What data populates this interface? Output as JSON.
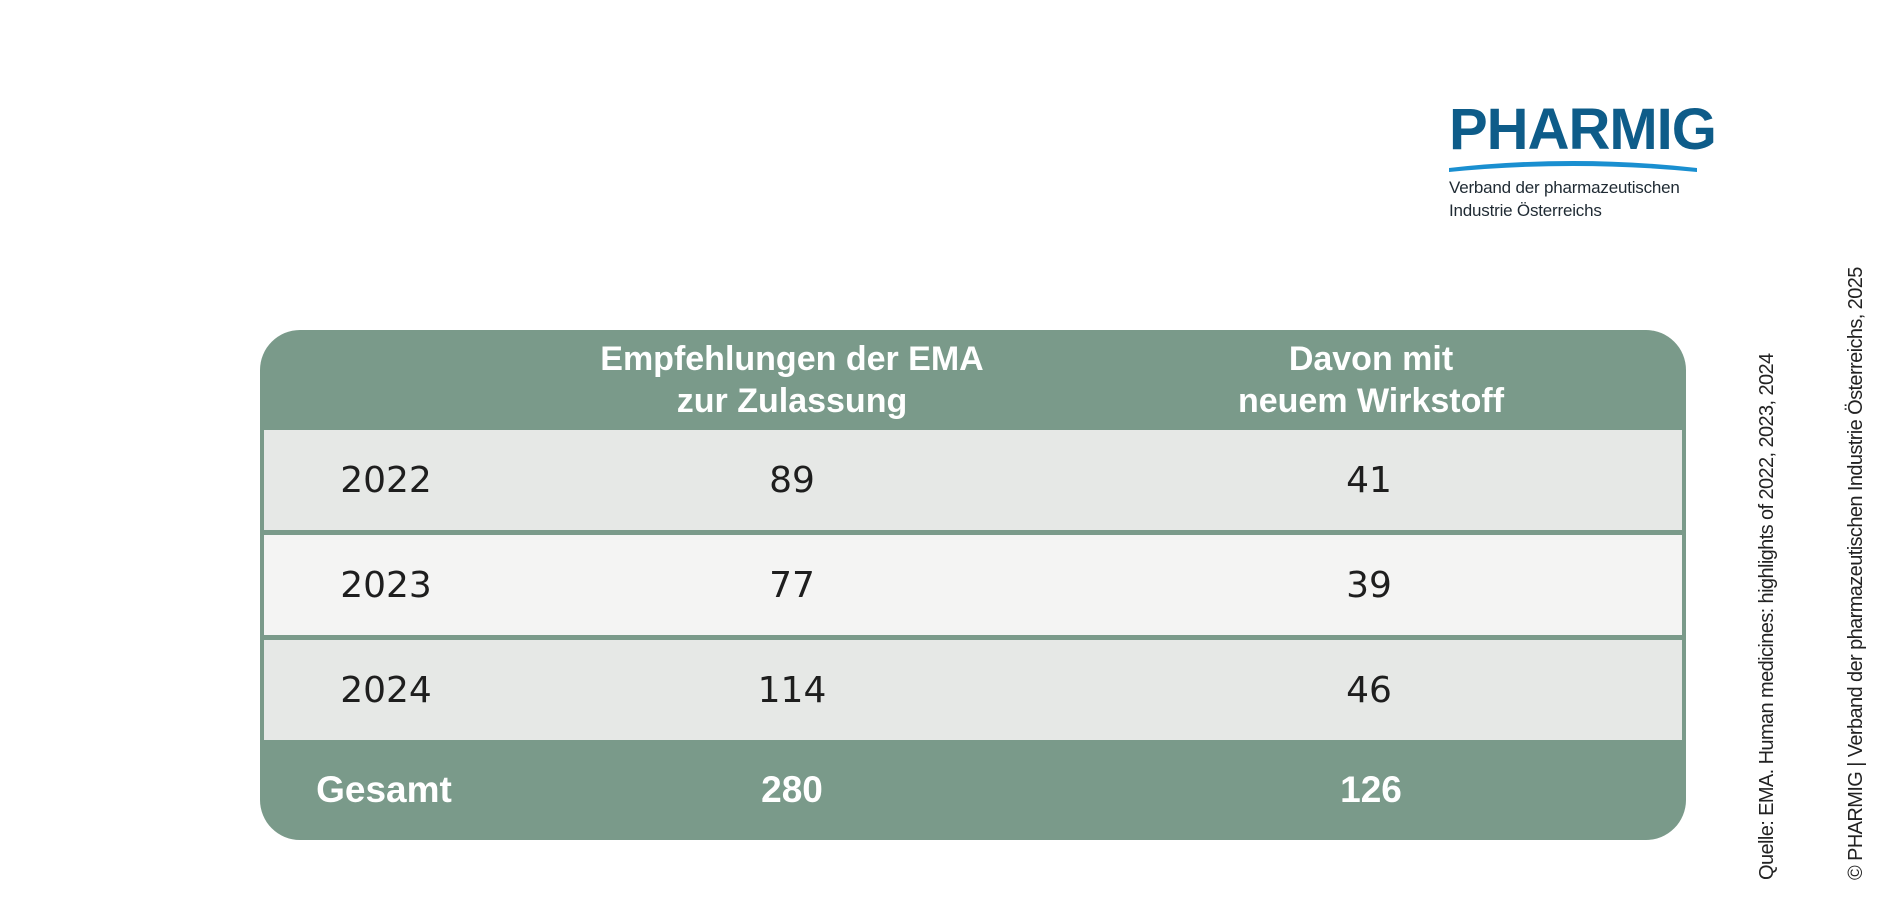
{
  "logo": {
    "name": "PHARMIG",
    "tagline_line1": "Verband der pharmazeutischen",
    "tagline_line2": "Industrie Österreichs",
    "brand_color": "#0e5c89",
    "swoosh_color": "#1a8fd0"
  },
  "table": {
    "header_color": "#7a9a8a",
    "headers": {
      "col0": "",
      "col1_line1": "Empfehlungen der EMA",
      "col1_line2": "zur Zulassung",
      "col2_line1": "Davon mit",
      "col2_line2": "neuem Wirkstoff"
    },
    "rows": [
      {
        "year": "2022",
        "recommendations": "89",
        "new_substance": "41"
      },
      {
        "year": "2023",
        "recommendations": "77",
        "new_substance": "39"
      },
      {
        "year": "2024",
        "recommendations": "114",
        "new_substance": "46"
      }
    ],
    "total": {
      "label": "Gesamt",
      "recommendations": "280",
      "new_substance": "126"
    }
  },
  "side_notes": {
    "source": "Quelle: EMA. Human medicines: highlights of 2022, 2023, 2024",
    "copyright": "© PHARMIG | Verband der pharmazeutischen Industrie Österreichs, 2025"
  }
}
